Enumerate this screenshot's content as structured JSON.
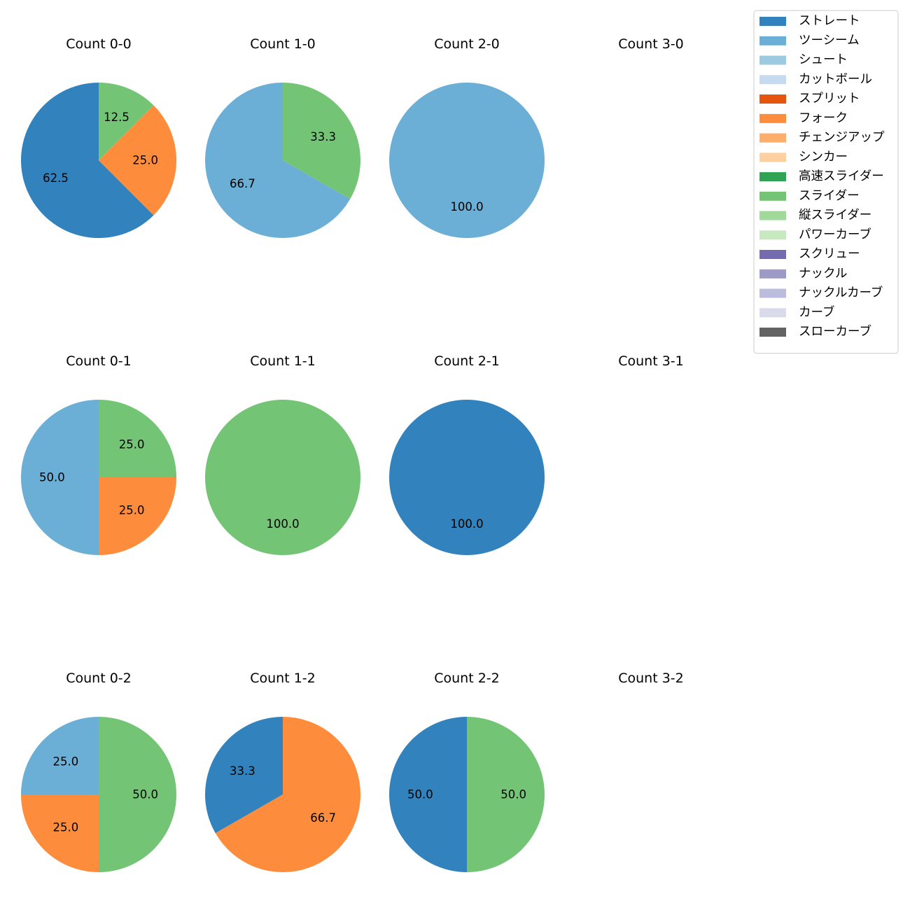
{
  "chart_data": {
    "type": "pie",
    "legend": {
      "placement": "top-right",
      "entries": [
        {
          "name": "ストレート",
          "color": "#3182bd"
        },
        {
          "name": "ツーシーム",
          "color": "#6baed6"
        },
        {
          "name": "シュート",
          "color": "#9ecae1"
        },
        {
          "name": "カットボール",
          "color": "#c6dbef"
        },
        {
          "name": "スプリット",
          "color": "#e6550d"
        },
        {
          "name": "フォーク",
          "color": "#fd8d3c"
        },
        {
          "name": "チェンジアップ",
          "color": "#fdae6b"
        },
        {
          "name": "シンカー",
          "color": "#fdd0a2"
        },
        {
          "name": "高速スライダー",
          "color": "#31a354"
        },
        {
          "name": "スライダー",
          "color": "#74c476"
        },
        {
          "name": "縦スライダー",
          "color": "#a1d99b"
        },
        {
          "name": "パワーカーブ",
          "color": "#c7e9c0"
        },
        {
          "name": "スクリュー",
          "color": "#756bb1"
        },
        {
          "name": "ナックル",
          "color": "#9e9ac8"
        },
        {
          "name": "ナックルカーブ",
          "color": "#bcbddc"
        },
        {
          "name": "カーブ",
          "color": "#dadaeb"
        },
        {
          "name": "スローカーブ",
          "color": "#636363"
        }
      ]
    },
    "charts": [
      {
        "title": "Count 0-0",
        "slices": [
          {
            "pitch": "ストレート",
            "value": 62.5,
            "label": "62.5"
          },
          {
            "pitch": "フォーク",
            "value": 25.0,
            "label": "25.0"
          },
          {
            "pitch": "スライダー",
            "value": 12.5,
            "label": "12.5"
          }
        ]
      },
      {
        "title": "Count 1-0",
        "slices": [
          {
            "pitch": "ツーシーム",
            "value": 66.7,
            "label": "66.7"
          },
          {
            "pitch": "スライダー",
            "value": 33.3,
            "label": "33.3"
          }
        ]
      },
      {
        "title": "Count 2-0",
        "slices": [
          {
            "pitch": "ツーシーム",
            "value": 100.0,
            "label": "100.0"
          }
        ]
      },
      {
        "title": "Count 3-0",
        "slices": []
      },
      {
        "title": "Count 0-1",
        "slices": [
          {
            "pitch": "ツーシーム",
            "value": 50.0,
            "label": "50.0"
          },
          {
            "pitch": "フォーク",
            "value": 25.0,
            "label": "25.0"
          },
          {
            "pitch": "スライダー",
            "value": 25.0,
            "label": "25.0"
          }
        ]
      },
      {
        "title": "Count 1-1",
        "slices": [
          {
            "pitch": "スライダー",
            "value": 100.0,
            "label": "100.0"
          }
        ]
      },
      {
        "title": "Count 2-1",
        "slices": [
          {
            "pitch": "ストレート",
            "value": 100.0,
            "label": "100.0"
          }
        ]
      },
      {
        "title": "Count 3-1",
        "slices": []
      },
      {
        "title": "Count 0-2",
        "slices": [
          {
            "pitch": "ツーシーム",
            "value": 25.0,
            "label": "25.0"
          },
          {
            "pitch": "フォーク",
            "value": 25.0,
            "label": "25.0"
          },
          {
            "pitch": "スライダー",
            "value": 50.0,
            "label": "50.0"
          }
        ]
      },
      {
        "title": "Count 1-2",
        "slices": [
          {
            "pitch": "ストレート",
            "value": 33.3,
            "label": "33.3"
          },
          {
            "pitch": "フォーク",
            "value": 66.7,
            "label": "66.7"
          }
        ]
      },
      {
        "title": "Count 2-2",
        "slices": [
          {
            "pitch": "ストレート",
            "value": 50.0,
            "label": "50.0"
          },
          {
            "pitch": "スライダー",
            "value": 50.0,
            "label": "50.0"
          }
        ]
      },
      {
        "title": "Count 3-2",
        "slices": []
      }
    ]
  }
}
